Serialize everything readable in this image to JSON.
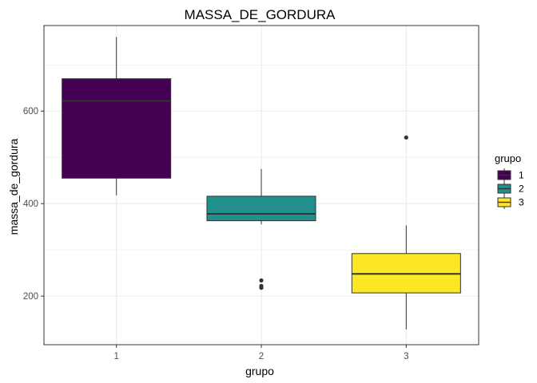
{
  "chart_data": {
    "type": "boxplot",
    "title": "MASSA_DE_GORDURA",
    "xlabel": "grupo",
    "ylabel": "massa_de_gordura",
    "categories": [
      "1",
      "2",
      "3"
    ],
    "yticks": [
      200,
      400,
      600
    ],
    "ylim": [
      95,
      785
    ],
    "grid": true,
    "legend": {
      "title": "grupo",
      "position": "right",
      "entries": [
        "1",
        "2",
        "3"
      ]
    },
    "colors": [
      "#440154",
      "#21908C",
      "#FDE725"
    ],
    "boxes": [
      {
        "group": "1",
        "lower_whisker": 418,
        "q1": 455,
        "median": 622,
        "q3": 670,
        "upper_whisker": 760,
        "outliers": []
      },
      {
        "group": "2",
        "lower_whisker": 355,
        "q1": 363,
        "median": 378,
        "q3": 416,
        "upper_whisker": 475,
        "outliers": [
          218,
          222,
          234
        ]
      },
      {
        "group": "3",
        "lower_whisker": 128,
        "q1": 207,
        "median": 248,
        "q3": 292,
        "upper_whisker": 353,
        "outliers": [
          543
        ]
      }
    ]
  }
}
